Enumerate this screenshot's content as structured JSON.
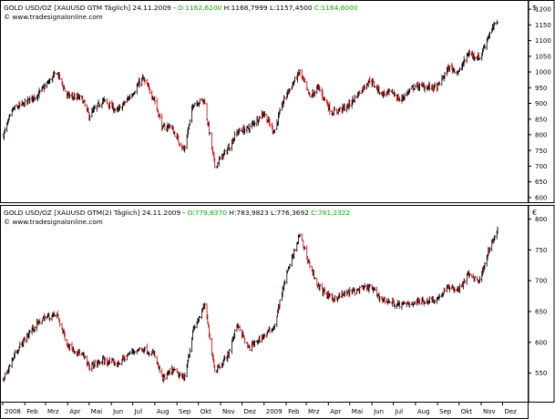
{
  "colors": {
    "background": "#ffffff",
    "frame": "#000000",
    "grid": "#000000",
    "bar": "#000000",
    "bar_down_accent": "#cc0000",
    "ohlc_values": "#00aa00",
    "text": "#000000"
  },
  "panels": [
    {
      "header": {
        "prefix": "GOLD USD/OZ [XAUUSD GTM  Täglich] 24.11.2009 - ",
        "ohlc_o": "O:1162,6200",
        "ohlc_rest": " H:1168,7999 L:1157,4500 ",
        "ohlc_c": "C:1164,6000"
      },
      "watermark": "© www.tradesignalonline.com",
      "currency_symbol": "$",
      "y_ticks": [
        "1200",
        "1150",
        "1100",
        "1050",
        "1000",
        "950",
        "900",
        "850",
        "800",
        "750",
        "700",
        "650",
        "600"
      ]
    },
    {
      "header": {
        "prefix": "GOLD USD/OZ [XAUUSD GTM(2)  Täglich] 24.11.2009 - ",
        "ohlc_o": "O:779,8370",
        "ohlc_rest": " H:783,9823 L:776,3692 ",
        "ohlc_c": "C:781,2322"
      },
      "watermark": "© www.tradesignalonline.com",
      "currency_symbol": "€",
      "y_ticks": [
        "800",
        "750",
        "700",
        "650",
        "600",
        "550"
      ]
    }
  ],
  "x_axis": {
    "labels": [
      "2008",
      "Feb",
      "Mrz",
      "Apr",
      "Mai",
      "Jun",
      "Jul",
      "Aug",
      "Sep",
      "Okt",
      "Nov",
      "Dez",
      "2009",
      "Feb",
      "Mrz",
      "Apr",
      "Mai",
      "Jun",
      "Jul",
      "Aug",
      "Sep",
      "Okt",
      "Nov",
      "Dez"
    ]
  },
  "chart_data": [
    {
      "type": "ohlc",
      "title": "GOLD USD/OZ [XAUUSD GTM  Täglich] 24.11.2009",
      "ylabel": "$",
      "ylim": [
        585,
        1225
      ],
      "y_scale": "linear",
      "grid": false,
      "x": [
        "2008-01",
        "2008-02",
        "2008-03",
        "2008-04",
        "2008-05",
        "2008-06",
        "2008-07",
        "2008-08",
        "2008-09",
        "2008-10",
        "2008-11",
        "2008-12",
        "2009-01",
        "2009-02",
        "2009-03",
        "2009-04",
        "2009-05",
        "2009-06",
        "2009-07",
        "2009-08",
        "2009-09",
        "2009-10",
        "2009-11-24"
      ],
      "series": [
        {
          "name": "GOLD USD/OZ",
          "close_path": [
            [
              "2008-01-02",
              800
            ],
            [
              "2008-01-15",
              880
            ],
            [
              "2008-02-01",
              900
            ],
            [
              "2008-02-20",
              930
            ],
            [
              "2008-03-10",
              980
            ],
            [
              "2008-03-17",
              1000
            ],
            [
              "2008-03-31",
              925
            ],
            [
              "2008-04-21",
              915
            ],
            [
              "2008-05-01",
              860
            ],
            [
              "2008-05-20",
              910
            ],
            [
              "2008-06-10",
              875
            ],
            [
              "2008-06-30",
              930
            ],
            [
              "2008-07-15",
              980
            ],
            [
              "2008-07-31",
              915
            ],
            [
              "2008-08-12",
              820
            ],
            [
              "2008-08-22",
              830
            ],
            [
              "2008-09-11",
              750
            ],
            [
              "2008-09-24",
              900
            ],
            [
              "2008-10-09",
              910
            ],
            [
              "2008-10-24",
              700
            ],
            [
              "2008-11-10",
              750
            ],
            [
              "2008-11-25",
              810
            ],
            [
              "2008-12-10",
              820
            ],
            [
              "2008-12-31",
              870
            ],
            [
              "2009-01-15",
              810
            ],
            [
              "2009-01-30",
              920
            ],
            [
              "2009-02-20",
              1000
            ],
            [
              "2009-03-06",
              920
            ],
            [
              "2009-03-18",
              950
            ],
            [
              "2009-04-06",
              870
            ],
            [
              "2009-04-28",
              890
            ],
            [
              "2009-05-29",
              975
            ],
            [
              "2009-06-15",
              930
            ],
            [
              "2009-06-30",
              935
            ],
            [
              "2009-07-10",
              910
            ],
            [
              "2009-07-31",
              955
            ],
            [
              "2009-08-31",
              950
            ],
            [
              "2009-09-17",
              1015
            ],
            [
              "2009-10-01",
              1000
            ],
            [
              "2009-10-14",
              1060
            ],
            [
              "2009-10-30",
              1045
            ],
            [
              "2009-11-10",
              1110
            ],
            [
              "2009-11-24",
              1165
            ]
          ],
          "last_bar": {
            "open": 1162.62,
            "high": 1168.7999,
            "low": 1157.45,
            "close": 1164.6
          }
        }
      ]
    },
    {
      "type": "ohlc",
      "title": "GOLD USD/OZ [XAUUSD GTM(2)  Täglich] 24.11.2009",
      "ylabel": "€",
      "ylim": [
        505,
        820
      ],
      "y_scale": "linear",
      "grid": false,
      "x": [
        "2008-01",
        "2008-02",
        "2008-03",
        "2008-04",
        "2008-05",
        "2008-06",
        "2008-07",
        "2008-08",
        "2008-09",
        "2008-10",
        "2008-11",
        "2008-12",
        "2009-01",
        "2009-02",
        "2009-03",
        "2009-04",
        "2009-05",
        "2009-06",
        "2009-07",
        "2009-08",
        "2009-09",
        "2009-10",
        "2009-11-24"
      ],
      "series": [
        {
          "name": "GOLD USD/OZ",
          "close_path": [
            [
              "2008-01-02",
              540
            ],
            [
              "2008-01-20",
              585
            ],
            [
              "2008-02-10",
              620
            ],
            [
              "2008-02-28",
              640
            ],
            [
              "2008-03-17",
              645
            ],
            [
              "2008-04-01",
              595
            ],
            [
              "2008-04-21",
              580
            ],
            [
              "2008-05-01",
              560
            ],
            [
              "2008-05-20",
              570
            ],
            [
              "2008-06-10",
              565
            ],
            [
              "2008-06-30",
              585
            ],
            [
              "2008-07-15",
              590
            ],
            [
              "2008-07-31",
              580
            ],
            [
              "2008-08-12",
              540
            ],
            [
              "2008-08-26",
              555
            ],
            [
              "2008-09-11",
              540
            ],
            [
              "2008-09-24",
              620
            ],
            [
              "2008-10-10",
              660
            ],
            [
              "2008-10-24",
              555
            ],
            [
              "2008-11-10",
              575
            ],
            [
              "2008-11-25",
              630
            ],
            [
              "2008-12-10",
              590
            ],
            [
              "2008-12-31",
              610
            ],
            [
              "2009-01-15",
              625
            ],
            [
              "2009-01-30",
              700
            ],
            [
              "2009-02-20",
              775
            ],
            [
              "2009-03-06",
              725
            ],
            [
              "2009-03-18",
              690
            ],
            [
              "2009-04-06",
              670
            ],
            [
              "2009-04-28",
              680
            ],
            [
              "2009-05-29",
              690
            ],
            [
              "2009-06-15",
              670
            ],
            [
              "2009-07-10",
              660
            ],
            [
              "2009-07-31",
              665
            ],
            [
              "2009-08-31",
              670
            ],
            [
              "2009-09-17",
              690
            ],
            [
              "2009-10-01",
              685
            ],
            [
              "2009-10-14",
              710
            ],
            [
              "2009-10-30",
              700
            ],
            [
              "2009-11-10",
              745
            ],
            [
              "2009-11-24",
              781
            ]
          ],
          "last_bar": {
            "open": 779.837,
            "high": 783.9823,
            "low": 776.3692,
            "close": 781.2322
          }
        }
      ]
    }
  ]
}
